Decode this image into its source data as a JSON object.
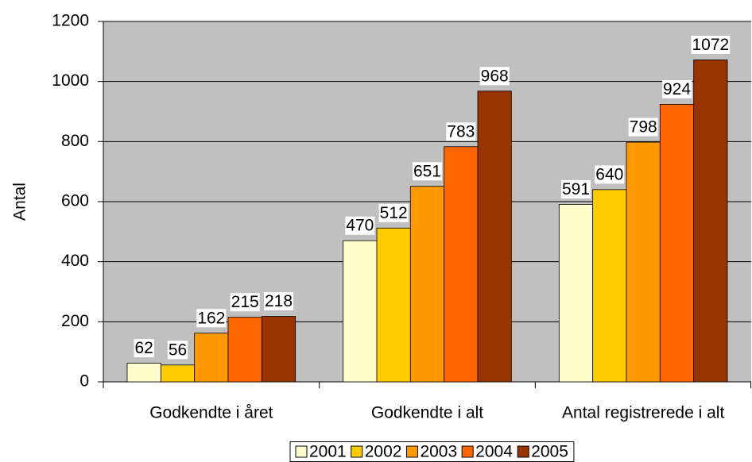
{
  "chart_data": {
    "type": "bar",
    "y_label": "Antal",
    "categories": [
      "Godkendte i året",
      "Godkendte i alt",
      "Antal registrerede i alt"
    ],
    "series": [
      {
        "name": "2001",
        "color": "#FFFFCC",
        "values": [
          62,
          470,
          591
        ]
      },
      {
        "name": "2002",
        "color": "#FFCC00",
        "values": [
          56,
          512,
          640
        ]
      },
      {
        "name": "2003",
        "color": "#FF9900",
        "values": [
          162,
          651,
          798
        ]
      },
      {
        "name": "2004",
        "color": "#FF6600",
        "values": [
          215,
          783,
          924
        ]
      },
      {
        "name": "2005",
        "color": "#993300",
        "values": [
          218,
          968,
          1072
        ]
      }
    ],
    "ylim": [
      0,
      1200
    ],
    "yticks": [
      0,
      200,
      400,
      600,
      800,
      1000,
      1200
    ],
    "grid": true,
    "plot_background": "#C0C0C0",
    "legend": "bottom"
  }
}
